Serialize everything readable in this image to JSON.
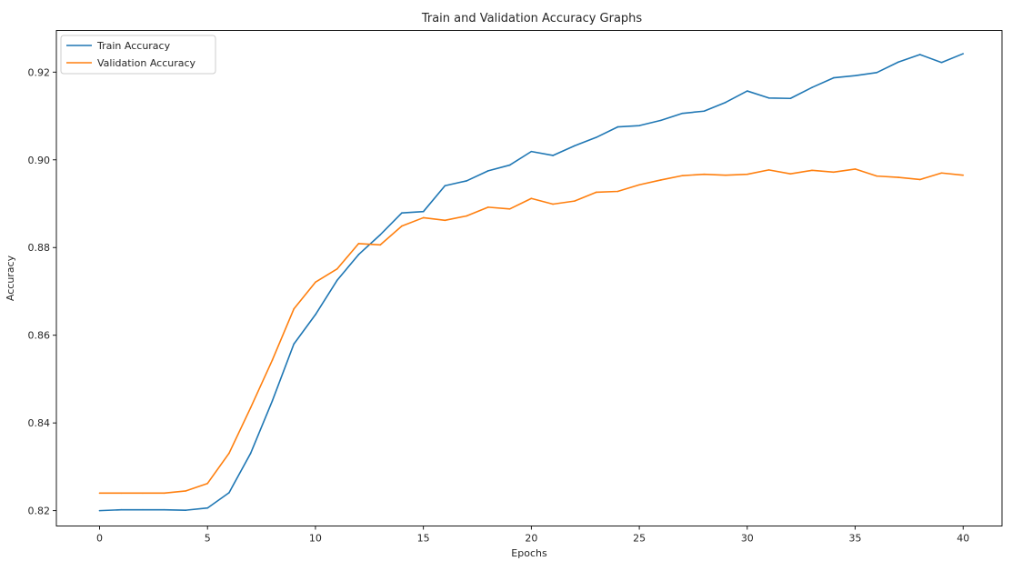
{
  "chart_data": {
    "type": "line",
    "title": "Train and Validation Accuracy Graphs",
    "xlabel": "Epochs",
    "ylabel": "Accuracy",
    "xlim": [
      -2,
      41.8
    ],
    "ylim": [
      0.8165,
      0.9295
    ],
    "xticks": [
      0,
      5,
      10,
      15,
      20,
      25,
      30,
      35,
      40
    ],
    "yticks": [
      0.82,
      0.84,
      0.86,
      0.88,
      0.9,
      0.92
    ],
    "ytick_labels": [
      "0.82",
      "0.84",
      "0.86",
      "0.88",
      "0.90",
      "0.92"
    ],
    "grid": false,
    "legend_position": "upper-left",
    "x": [
      0,
      1,
      2,
      3,
      4,
      5,
      6,
      7,
      8,
      9,
      10,
      11,
      12,
      13,
      14,
      15,
      16,
      17,
      18,
      19,
      20,
      21,
      22,
      23,
      24,
      25,
      26,
      27,
      28,
      29,
      30,
      31,
      32,
      33,
      34,
      35,
      36,
      37,
      38,
      39,
      40
    ],
    "series": [
      {
        "name": "Train Accuracy",
        "color": "#1f77b4",
        "values": [
          0.82,
          0.8202,
          0.8202,
          0.8202,
          0.8201,
          0.8206,
          0.8241,
          0.8331,
          0.845,
          0.858,
          0.8647,
          0.8725,
          0.8784,
          0.8829,
          0.8879,
          0.8882,
          0.8941,
          0.8952,
          0.8975,
          0.8988,
          0.9019,
          0.901,
          0.9032,
          0.9051,
          0.9075,
          0.9078,
          0.909,
          0.9106,
          0.9111,
          0.9131,
          0.9157,
          0.9141,
          0.914,
          0.9165,
          0.9187,
          0.9192,
          0.9199,
          0.9223,
          0.924,
          0.9222,
          0.9242
        ]
      },
      {
        "name": "Validation Accuracy",
        "color": "#ff7f0e",
        "values": [
          0.824,
          0.824,
          0.824,
          0.824,
          0.8245,
          0.8262,
          0.8331,
          0.8435,
          0.8543,
          0.866,
          0.8721,
          0.8751,
          0.8809,
          0.8806,
          0.8849,
          0.8868,
          0.8862,
          0.8872,
          0.8892,
          0.8888,
          0.8912,
          0.8899,
          0.8906,
          0.8926,
          0.8928,
          0.8943,
          0.8954,
          0.8964,
          0.8967,
          0.8965,
          0.8967,
          0.8977,
          0.8968,
          0.8976,
          0.8972,
          0.8979,
          0.8963,
          0.896,
          0.8955,
          0.897,
          0.8965
        ]
      }
    ]
  }
}
